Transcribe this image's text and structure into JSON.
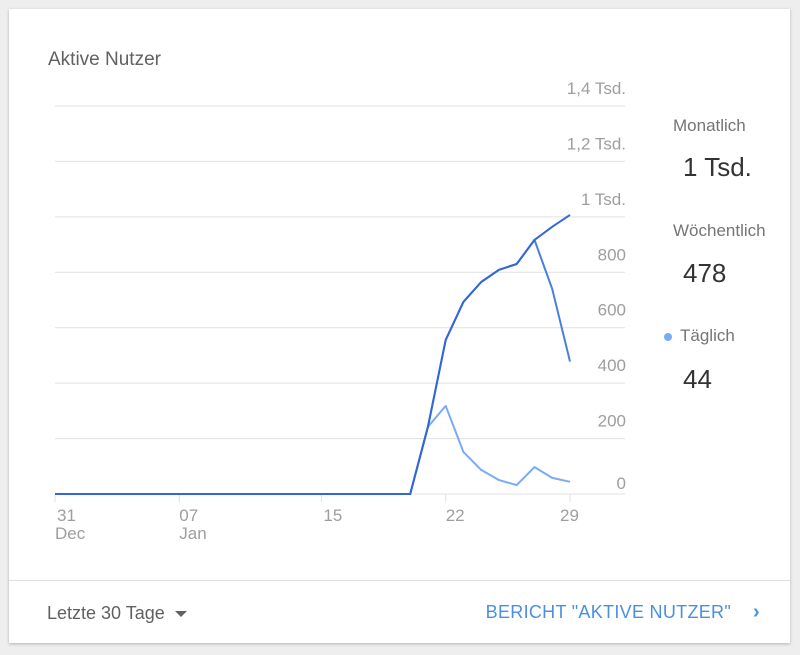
{
  "card": {
    "title": "Aktive Nutzer"
  },
  "legend": [
    {
      "label": "Monatlich",
      "value": "1 Tsd."
    },
    {
      "label": "Wöchentlich",
      "value": "478"
    },
    {
      "label": "Täglich",
      "value": "44",
      "dot_color": "#7baaf7"
    }
  ],
  "footer": {
    "range_label": "Letzte 30 Tage",
    "report_link": "BERICHT \"AKTIVE NUTZER\"",
    "chevron": "›"
  },
  "chart_data": {
    "type": "line",
    "title": "Aktive Nutzer",
    "x": [
      "Dec 31",
      "Jan 01",
      "Jan 02",
      "Jan 03",
      "Jan 04",
      "Jan 05",
      "Jan 06",
      "Jan 07",
      "Jan 08",
      "Jan 09",
      "Jan 10",
      "Jan 11",
      "Jan 12",
      "Jan 13",
      "Jan 14",
      "Jan 15",
      "Jan 16",
      "Jan 17",
      "Jan 18",
      "Jan 19",
      "Jan 20",
      "Jan 21",
      "Jan 22",
      "Jan 23",
      "Jan 24",
      "Jan 25",
      "Jan 26",
      "Jan 27",
      "Jan 28",
      "Jan 29"
    ],
    "x_ticks": [
      {
        "index": 0,
        "day": "31",
        "month": "Dec"
      },
      {
        "index": 7,
        "day": "07",
        "month": "Jan"
      },
      {
        "index": 15,
        "day": "15",
        "month": ""
      },
      {
        "index": 22,
        "day": "22",
        "month": ""
      },
      {
        "index": 29,
        "day": "29",
        "month": ""
      }
    ],
    "y_ticks": [
      {
        "v": 0,
        "label": "0"
      },
      {
        "v": 200,
        "label": "200"
      },
      {
        "v": 400,
        "label": "400"
      },
      {
        "v": 600,
        "label": "600"
      },
      {
        "v": 800,
        "label": "800"
      },
      {
        "v": 1000,
        "label": "1 Tsd."
      },
      {
        "v": 1200,
        "label": "1,2 Tsd."
      },
      {
        "v": 1400,
        "label": "1,4 Tsd."
      }
    ],
    "ylim": [
      0,
      1400
    ],
    "grid": true,
    "series": [
      {
        "name": "Monatlich",
        "color": "#3367d6",
        "values": [
          0,
          0,
          0,
          0,
          0,
          0,
          0,
          0,
          0,
          0,
          0,
          0,
          0,
          0,
          0,
          0,
          0,
          0,
          0,
          0,
          0,
          242,
          556,
          693,
          765,
          809,
          830,
          917,
          964,
          1007
        ]
      },
      {
        "name": "Wöchentlich",
        "color": "#4a7fe0",
        "values": [
          0,
          0,
          0,
          0,
          0,
          0,
          0,
          0,
          0,
          0,
          0,
          0,
          0,
          0,
          0,
          0,
          0,
          0,
          0,
          0,
          0,
          242,
          556,
          693,
          765,
          809,
          830,
          917,
          740,
          478
        ]
      },
      {
        "name": "Täglich",
        "color": "#7baaf7",
        "values": [
          0,
          0,
          0,
          0,
          0,
          0,
          0,
          0,
          0,
          0,
          0,
          0,
          0,
          0,
          0,
          0,
          0,
          0,
          0,
          0,
          0,
          242,
          318,
          152,
          87,
          50,
          32,
          97,
          58,
          44
        ]
      }
    ]
  }
}
